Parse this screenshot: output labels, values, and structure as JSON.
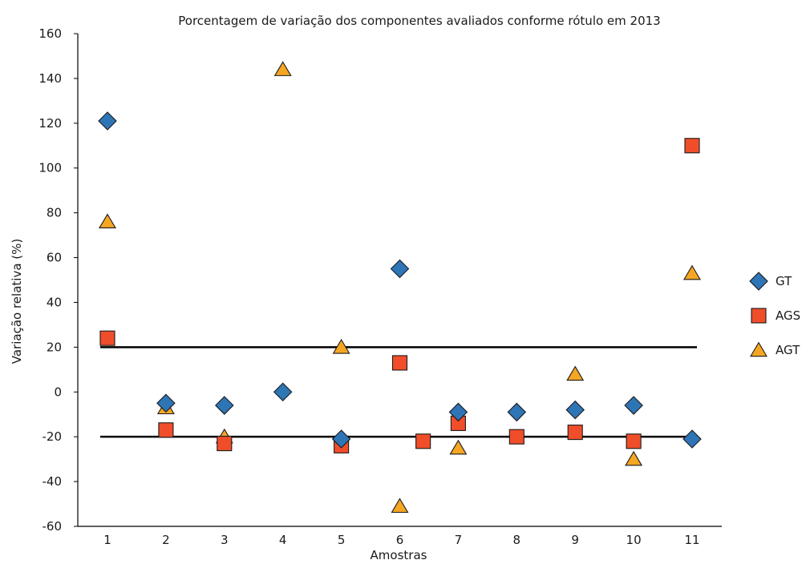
{
  "chart_data": {
    "type": "scatter",
    "title": "Porcentagem de variação dos componentes avaliados conforme rótulo em 2013",
    "xlabel": "Amostras",
    "ylabel": "Variação relativa (%)",
    "categories": [
      "1",
      "2",
      "3",
      "4",
      "5",
      "6",
      "7",
      "8",
      "9",
      "10",
      "11"
    ],
    "ylim": [
      -60,
      160
    ],
    "yticks": [
      "160",
      "140",
      "120",
      "100",
      "80",
      "60",
      "40",
      "20",
      "0",
      "-20",
      "-40",
      "-60"
    ],
    "legend_position": "right",
    "reference_lines": [
      {
        "y": 20,
        "x_from": 1,
        "x_to": 11
      },
      {
        "y": -20,
        "x_from": 1,
        "x_to": 11
      }
    ],
    "series": [
      {
        "name": "GT",
        "marker": "diamond",
        "color": "#2e75b6",
        "points": [
          [
            1,
            121
          ],
          [
            2,
            -5
          ],
          [
            3,
            -6
          ],
          [
            4,
            0
          ],
          [
            5,
            -21
          ],
          [
            6,
            55
          ],
          [
            7,
            -9
          ],
          [
            8,
            -9
          ],
          [
            9,
            -8
          ],
          [
            10,
            -6
          ],
          [
            11,
            -21
          ]
        ]
      },
      {
        "name": "AGS",
        "marker": "square",
        "color": "#f04e2a",
        "points": [
          [
            1,
            24
          ],
          [
            2,
            -17
          ],
          [
            3,
            -23
          ],
          [
            5,
            -24
          ],
          [
            6,
            13
          ],
          [
            6.4,
            -22
          ],
          [
            7,
            -14
          ],
          [
            8,
            -20
          ],
          [
            9,
            -18
          ],
          [
            10,
            -22
          ],
          [
            11,
            110
          ]
        ]
      },
      {
        "name": "AGT",
        "marker": "triangle",
        "color": "#f5a623",
        "points": [
          [
            1,
            76
          ],
          [
            2,
            -7
          ],
          [
            3,
            -20
          ],
          [
            4,
            144
          ],
          [
            5,
            20
          ],
          [
            6,
            -51
          ],
          [
            7,
            -25
          ],
          [
            9,
            8
          ],
          [
            10,
            -30
          ],
          [
            11,
            53
          ]
        ]
      }
    ]
  }
}
